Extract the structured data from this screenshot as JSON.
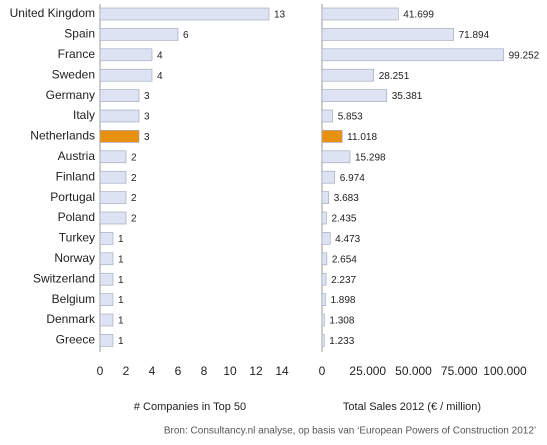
{
  "chart_data": [
    {
      "type": "bar",
      "orientation": "horizontal",
      "categories": [
        "United Kingdom",
        "Spain",
        "France",
        "Sweden",
        "Germany",
        "Italy",
        "Netherlands",
        "Austria",
        "Finland",
        "Portugal",
        "Poland",
        "Turkey",
        "Norway",
        "Switzerland",
        "Belgium",
        "Denmark",
        "Greece"
      ],
      "values": [
        13,
        6,
        4,
        4,
        3,
        3,
        3,
        2,
        2,
        2,
        2,
        1,
        1,
        1,
        1,
        1,
        1
      ],
      "colors": [
        "#dde3f2",
        "#dde3f2",
        "#dde3f2",
        "#dde3f2",
        "#dde3f2",
        "#dde3f2",
        "#e8900f",
        "#dde3f2",
        "#dde3f2",
        "#dde3f2",
        "#dde3f2",
        "#dde3f2",
        "#dde3f2",
        "#dde3f2",
        "#dde3f2",
        "#dde3f2",
        "#dde3f2"
      ],
      "xlim": [
        0,
        14
      ],
      "xticks": [
        0,
        2,
        4,
        6,
        8,
        10,
        12,
        14
      ],
      "x_label": "# Companies in Top 50",
      "grid": false
    },
    {
      "type": "bar",
      "orientation": "horizontal",
      "values": [
        41699,
        71894,
        99252,
        28251,
        35381,
        5853,
        11018,
        15298,
        6974,
        3683,
        2435,
        4473,
        2654,
        2237,
        1898,
        1308,
        1233
      ],
      "value_labels": [
        "41.699",
        "71.894",
        "99.252",
        "28.251",
        "35.381",
        "5.853",
        "11.018",
        "15.298",
        "6.974",
        "3.683",
        "2.435",
        "4.473",
        "2.654",
        "2.237",
        "1.898",
        "1.308",
        "1.233"
      ],
      "colors": [
        "#dde3f2",
        "#dde3f2",
        "#dde3f2",
        "#dde3f2",
        "#dde3f2",
        "#dde3f2",
        "#e8900f",
        "#dde3f2",
        "#dde3f2",
        "#dde3f2",
        "#dde3f2",
        "#dde3f2",
        "#dde3f2",
        "#dde3f2",
        "#dde3f2",
        "#dde3f2",
        "#dde3f2"
      ],
      "xlim": [
        0,
        100000
      ],
      "xticks": [
        0,
        {
          "value": 25000,
          "label": "25.000"
        },
        {
          "value": 50000,
          "label": "50.000"
        },
        {
          "value": 75000,
          "label": "75.000"
        },
        {
          "value": 100000,
          "label": "100.000"
        }
      ],
      "x_label": "Total Sales 2012 (€ / million)",
      "grid": false
    }
  ],
  "source": "Bron: Consultancy.nl analyse, op basis van ‘European Powers of Construction 2012’"
}
